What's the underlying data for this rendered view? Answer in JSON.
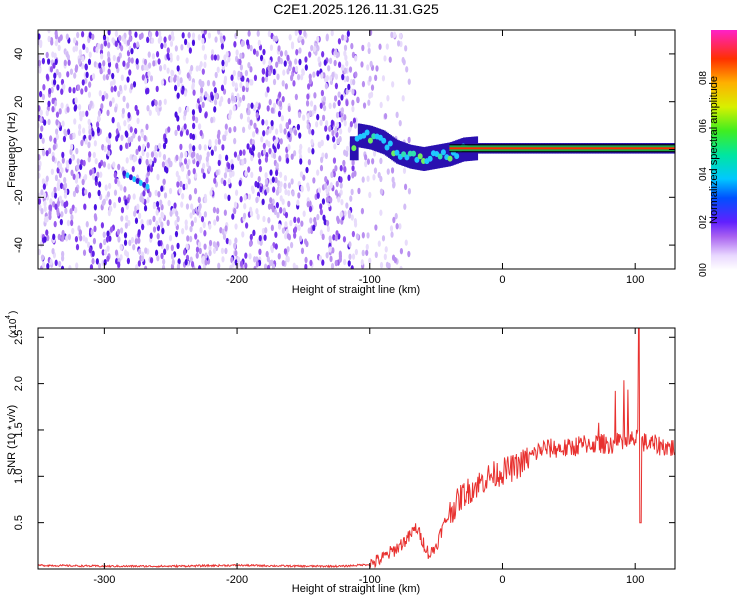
{
  "chart_data": [
    {
      "type": "heatmap",
      "title": "C2E1.2025.126.11.31.G25",
      "xlabel": "Height of straight line (km)",
      "ylabel": "Frequency (Hz)",
      "xlim": [
        -350,
        130
      ],
      "ylim": [
        -50,
        50
      ],
      "xticks": [
        -300,
        -200,
        -100,
        0,
        100
      ],
      "yticks": [
        -40,
        -20,
        0,
        20,
        40
      ],
      "colorbar": {
        "label": "Normalized spectral amplitude",
        "range": [
          0,
          1
        ],
        "ticks": [
          "0.0",
          "0.2",
          "0.4",
          "0.6",
          "0.8"
        ]
      },
      "ridge": [
        {
          "x": -110,
          "y": 6
        },
        {
          "x": -100,
          "y": 5
        },
        {
          "x": -90,
          "y": 3
        },
        {
          "x": -80,
          "y": -1
        },
        {
          "x": -70,
          "y": -3
        },
        {
          "x": -60,
          "y": -4
        },
        {
          "x": -50,
          "y": -3
        },
        {
          "x": -40,
          "y": -2
        },
        {
          "x": -30,
          "y": 0
        },
        {
          "x": -20,
          "y": 0.5
        },
        {
          "x": 0,
          "y": 0.5
        },
        {
          "x": 50,
          "y": 0.5
        },
        {
          "x": 100,
          "y": 0.5
        },
        {
          "x": 130,
          "y": 0.5
        }
      ]
    },
    {
      "type": "line",
      "xlabel": "Height of straight line (km)",
      "ylabel": "SNR (10 * v/v)",
      "y_multiplier": "(x10",
      "y_multiplier_exp": "4",
      "xlim": [
        -350,
        130
      ],
      "ylim": [
        0,
        2.6
      ],
      "xticks": [
        -300,
        -200,
        -100,
        0,
        100
      ],
      "yticks": [
        0.5,
        1.0,
        1.5,
        2.0,
        2.5
      ],
      "series": [
        {
          "color": "#e8312f",
          "x": [
            -350,
            -300,
            -250,
            -200,
            -150,
            -120,
            -100,
            -90,
            -80,
            -70,
            -65,
            -60,
            -55,
            -50,
            -45,
            -40,
            -35,
            -30,
            -25,
            -20,
            -10,
            0,
            10,
            20,
            30,
            40,
            50,
            60,
            70,
            80,
            90,
            100,
            110,
            120,
            130
          ],
          "y": [
            0.04,
            0.03,
            0.03,
            0.04,
            0.03,
            0.03,
            0.05,
            0.12,
            0.22,
            0.35,
            0.45,
            0.3,
            0.15,
            0.25,
            0.45,
            0.6,
            0.7,
            0.8,
            0.85,
            0.9,
            1.0,
            1.05,
            1.1,
            1.2,
            1.3,
            1.3,
            1.3,
            1.35,
            1.35,
            1.35,
            1.35,
            1.4,
            1.35,
            1.33,
            1.3
          ]
        }
      ]
    }
  ]
}
